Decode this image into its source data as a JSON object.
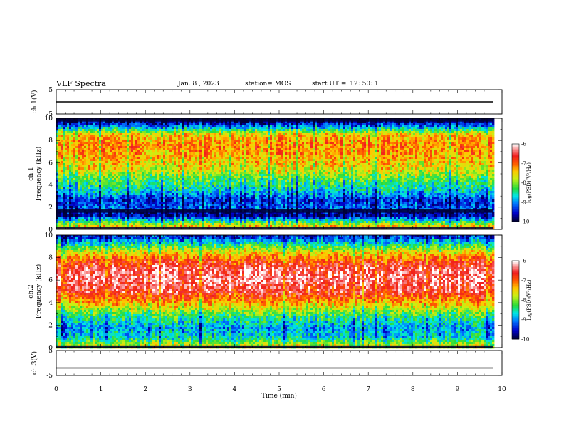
{
  "header": {
    "title": "VLF Spectra",
    "date": "Jan. 8 , 2023",
    "station_label": "station= MOS",
    "start_label": "start  UT  =",
    "start_time": "12: 50: 1"
  },
  "chart_data": [
    {
      "type": "line",
      "panel": "ch1-voltage",
      "ylabel": "ch.1(V)",
      "y_ticks": [
        "5",
        "-5"
      ],
      "ylim": [
        -5,
        5
      ],
      "x": [
        0,
        10
      ],
      "values": [
        0,
        0
      ]
    },
    {
      "type": "heatmap",
      "panel": "ch1-spectrogram",
      "ylabel": "ch.1\nFrequency (kHz)",
      "y_ticks": [
        "0",
        "2",
        "4",
        "6",
        "8",
        "10"
      ],
      "ylim": [
        0,
        10
      ],
      "xlim": [
        0,
        9.8
      ],
      "colorbar": {
        "label": "log(PSD)(V²/Hz)",
        "ticks": [
          "-6",
          "-7",
          "-8",
          "-9",
          "-10"
        ],
        "range": [
          -10,
          -6
        ]
      },
      "profile": [
        {
          "f": 0.3,
          "v": -7.5
        },
        {
          "f": 0.8,
          "v": -8.6
        },
        {
          "f": 1.3,
          "v": -9.8
        },
        {
          "f": 1.9,
          "v": -9.2
        },
        {
          "f": 2.6,
          "v": -9.4
        },
        {
          "f": 3.5,
          "v": -8.7
        },
        {
          "f": 4.5,
          "v": -8.2
        },
        {
          "f": 5.5,
          "v": -7.6
        },
        {
          "f": 6.5,
          "v": -7.3
        },
        {
          "f": 7.5,
          "v": -7.1
        },
        {
          "f": 8.5,
          "v": -7.4
        },
        {
          "f": 9.2,
          "v": -8.9
        },
        {
          "f": 9.8,
          "v": -9.9
        }
      ]
    },
    {
      "type": "heatmap",
      "panel": "ch2-spectrogram",
      "ylabel": "ch.2\nFrequency (kHz)",
      "y_ticks": [
        "0",
        "2",
        "4",
        "6",
        "8",
        "10"
      ],
      "ylim": [
        0,
        10
      ],
      "xlim": [
        0,
        9.8
      ],
      "colorbar": {
        "label": "log(PSD)(V²/Hz)",
        "ticks": [
          "-6",
          "-7",
          "-8",
          "-9",
          "-10"
        ],
        "range": [
          -10,
          -6
        ]
      },
      "profile": [
        {
          "f": 0.3,
          "v": -7.8
        },
        {
          "f": 1.0,
          "v": -8.7
        },
        {
          "f": 1.8,
          "v": -8.9
        },
        {
          "f": 2.6,
          "v": -8.5
        },
        {
          "f": 3.4,
          "v": -7.9
        },
        {
          "f": 4.2,
          "v": -7.1
        },
        {
          "f": 5.0,
          "v": -6.6
        },
        {
          "f": 6.0,
          "v": -6.3
        },
        {
          "f": 7.0,
          "v": -6.4
        },
        {
          "f": 7.8,
          "v": -6.9
        },
        {
          "f": 8.6,
          "v": -7.7
        },
        {
          "f": 9.3,
          "v": -8.6
        },
        {
          "f": 9.8,
          "v": -9.4
        }
      ]
    },
    {
      "type": "line",
      "panel": "ch3-voltage",
      "ylabel": "ch.3(V)",
      "y_ticks": [
        "5",
        "-5"
      ],
      "ylim": [
        -5,
        5
      ],
      "x": [
        0,
        10
      ],
      "values": [
        -2,
        -2
      ]
    }
  ],
  "x_axis": {
    "label": "Time (min)",
    "ticks": [
      "0",
      "1",
      "2",
      "3",
      "4",
      "5",
      "6",
      "7",
      "8",
      "9",
      "10"
    ]
  }
}
